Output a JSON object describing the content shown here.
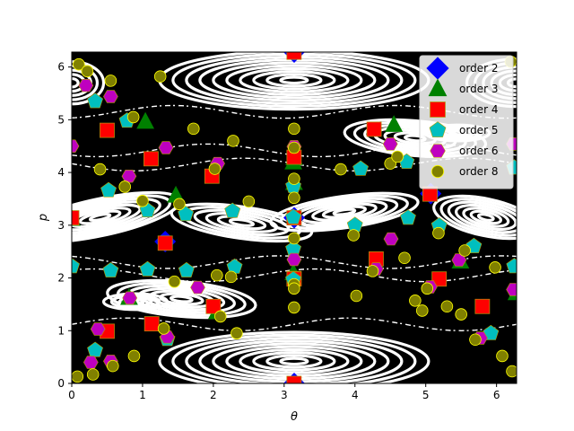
{
  "chart_data": {
    "type": "scatter",
    "title": "",
    "xlabel": "θ",
    "ylabel": "p",
    "xlim": [
      0,
      6.2832
    ],
    "ylim": [
      0,
      6.2832
    ],
    "xticks": [
      0,
      1,
      2,
      3,
      4,
      5,
      6
    ],
    "yticks": [
      0,
      1,
      2,
      3,
      4,
      5,
      6
    ],
    "xtick_labels": [
      "0",
      "1",
      "2",
      "3",
      "4",
      "5",
      "6"
    ],
    "ytick_labels": [
      "0",
      "1",
      "2",
      "3",
      "4",
      "5",
      "6"
    ],
    "grid": false,
    "legend_position": "top-right",
    "background": "phase portrait: black field with white invariant curves and islands",
    "series": [
      {
        "name": "order 2",
        "marker": "diamond",
        "color": "#0000ff",
        "x": [
          3.1416,
          3.1416,
          3.1416,
          1.32,
          5.07
        ],
        "y": [
          0.0,
          6.2832,
          3.1416,
          2.69,
          3.6
        ]
      },
      {
        "name": "order 3",
        "marker": "triangle",
        "color": "#008000",
        "x": [
          3.13,
          3.13,
          0.0,
          0.81,
          1.04,
          1.47,
          2.05,
          3.14,
          3.14,
          4.55,
          5.49,
          6.28
        ],
        "y": [
          2.09,
          4.19,
          3.12,
          1.62,
          4.96,
          3.56,
          1.35,
          3.8,
          4.27,
          4.9,
          2.31,
          1.71
        ]
      },
      {
        "name": "order 4",
        "marker": "square",
        "color": "#ff0000",
        "x": [
          0.0,
          0.5,
          1.12,
          1.32,
          1.98,
          2.0,
          3.14,
          3.14,
          3.14,
          3.14,
          3.14,
          3.14,
          4.27,
          4.3,
          5.06,
          5.19,
          5.8,
          0.5,
          1.13
        ],
        "y": [
          3.14,
          4.8,
          4.26,
          2.66,
          3.93,
          1.46,
          0.0,
          6.28,
          4.29,
          3.14,
          1.99,
          1.98,
          4.82,
          2.36,
          3.59,
          1.98,
          1.46,
          0.99,
          1.13
        ]
      },
      {
        "name": "order 5",
        "marker": "pentagon",
        "color": "#00bfbf",
        "x": [
          0.0,
          0.33,
          0.52,
          0.55,
          0.78,
          1.07,
          1.07,
          1.61,
          1.62,
          2.27,
          2.3,
          3.13,
          3.13,
          3.13,
          3.13,
          4.0,
          4.08,
          4.75,
          4.73,
          5.19,
          5.68,
          5.92,
          6.25,
          6.25,
          0.33,
          1.35
        ],
        "y": [
          2.22,
          5.35,
          3.66,
          2.14,
          4.98,
          3.28,
          2.16,
          3.21,
          2.14,
          3.27,
          2.21,
          3.15,
          2.55,
          1.97,
          3.74,
          3.0,
          4.07,
          3.14,
          4.2,
          2.99,
          2.6,
          0.95,
          4.09,
          2.22,
          0.63,
          0.84
        ]
      },
      {
        "name": "order 6",
        "marker": "hexagon",
        "color": "#bf00bf",
        "x": [
          0.0,
          0.2,
          0.27,
          0.55,
          0.81,
          0.82,
          1.33,
          1.78,
          2.06,
          3.14,
          3.14,
          4.3,
          4.5,
          4.51,
          5.06,
          5.47,
          5.77,
          6.24,
          6.24,
          0.55,
          0.37,
          1.35
        ],
        "y": [
          4.5,
          5.65,
          0.4,
          5.44,
          3.93,
          1.62,
          4.47,
          1.82,
          4.17,
          4.49,
          2.35,
          2.17,
          4.54,
          2.74,
          1.83,
          2.34,
          0.86,
          4.54,
          1.78,
          0.42,
          1.03,
          0.88
        ]
      },
      {
        "name": "order 8",
        "marker": "circle",
        "color": "#808000",
        "x": [
          0.1,
          0.22,
          0.3,
          0.4,
          0.58,
          0.75,
          0.87,
          1.0,
          1.25,
          1.45,
          1.52,
          1.72,
          2.02,
          2.05,
          2.1,
          2.33,
          2.5,
          3.14,
          3.14,
          3.14,
          3.14,
          3.14,
          3.14,
          3.14,
          3.14,
          3.8,
          3.98,
          4.02,
          4.25,
          4.5,
          4.6,
          4.7,
          4.95,
          5.02,
          5.18,
          5.3,
          5.55,
          5.7,
          5.98,
          6.08,
          6.2,
          6.22,
          0.08,
          0.55,
          0.88,
          1.3,
          2.28,
          2.25,
          4.85,
          5.5
        ],
        "y": [
          6.05,
          5.92,
          0.17,
          4.06,
          0.33,
          3.73,
          5.05,
          3.46,
          5.82,
          1.93,
          3.4,
          4.83,
          4.07,
          2.05,
          1.27,
          0.95,
          3.45,
          4.83,
          4.47,
          3.88,
          3.52,
          2.75,
          1.88,
          1.8,
          1.44,
          4.06,
          2.81,
          1.66,
          2.13,
          4.17,
          4.3,
          2.38,
          1.38,
          1.8,
          2.85,
          1.46,
          2.52,
          0.83,
          2.2,
          0.52,
          6.1,
          0.23,
          0.13,
          5.74,
          0.52,
          1.04,
          4.6,
          2.02,
          1.57,
          1.31
        ]
      }
    ]
  }
}
